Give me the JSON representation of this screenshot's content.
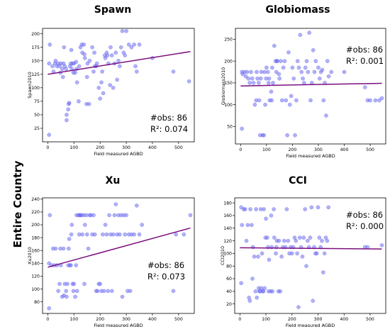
{
  "side_label": "Entire Country",
  "colors": {
    "points": "#6f6ff2",
    "fit_line": "#7a0f7e"
  },
  "chart_data": [
    {
      "type": "scatter",
      "title": "Spawn",
      "xlabel": "Field measured AGBD",
      "ylabel": "Spawn2010",
      "xlim": [
        -20,
        560
      ],
      "ylim": [
        0,
        210
      ],
      "xticks": [
        0,
        100,
        200,
        300,
        400,
        500
      ],
      "yticks": [
        25,
        50,
        75,
        100,
        125,
        150,
        175,
        200
      ],
      "obs_label": "#obs: 86",
      "r2_label": "R²: 0.074",
      "fit": {
        "x": [
          0,
          545
        ],
        "y": [
          125,
          167
        ]
      },
      "points": [
        [
          5,
          13
        ],
        [
          5,
          145
        ],
        [
          8,
          180
        ],
        [
          18,
          140
        ],
        [
          22,
          130
        ],
        [
          28,
          145
        ],
        [
          30,
          150
        ],
        [
          35,
          140
        ],
        [
          40,
          145
        ],
        [
          45,
          140
        ],
        [
          48,
          128
        ],
        [
          50,
          145
        ],
        [
          55,
          135
        ],
        [
          58,
          120
        ],
        [
          60,
          145
        ],
        [
          62,
          175
        ],
        [
          65,
          140
        ],
        [
          70,
          135
        ],
        [
          72,
          50
        ],
        [
          72,
          40
        ],
        [
          78,
          60
        ],
        [
          80,
          70
        ],
        [
          82,
          72
        ],
        [
          85,
          140
        ],
        [
          88,
          145
        ],
        [
          90,
          170
        ],
        [
          92,
          135
        ],
        [
          95,
          145
        ],
        [
          98,
          128
        ],
        [
          100,
          145
        ],
        [
          105,
          128
        ],
        [
          108,
          148
        ],
        [
          110,
          135
        ],
        [
          112,
          110
        ],
        [
          118,
          75
        ],
        [
          120,
          140
        ],
        [
          125,
          175
        ],
        [
          130,
          180
        ],
        [
          132,
          165
        ],
        [
          138,
          180
        ],
        [
          140,
          162
        ],
        [
          142,
          155
        ],
        [
          148,
          70
        ],
        [
          150,
          120
        ],
        [
          152,
          145
        ],
        [
          158,
          70
        ],
        [
          160,
          150
        ],
        [
          170,
          175
        ],
        [
          175,
          130
        ],
        [
          178,
          165
        ],
        [
          180,
          140
        ],
        [
          185,
          140
        ],
        [
          188,
          145
        ],
        [
          195,
          100
        ],
        [
          200,
          80
        ],
        [
          205,
          110
        ],
        [
          208,
          130
        ],
        [
          212,
          90
        ],
        [
          218,
          160
        ],
        [
          220,
          155
        ],
        [
          225,
          165
        ],
        [
          228,
          160
        ],
        [
          232,
          145
        ],
        [
          238,
          105
        ],
        [
          240,
          175
        ],
        [
          245,
          160
        ],
        [
          250,
          100
        ],
        [
          255,
          145
        ],
        [
          260,
          165
        ],
        [
          265,
          115
        ],
        [
          270,
          150
        ],
        [
          275,
          140
        ],
        [
          280,
          175
        ],
        [
          285,
          205
        ],
        [
          290,
          165
        ],
        [
          295,
          160
        ],
        [
          300,
          205
        ],
        [
          310,
          180
        ],
        [
          320,
          175
        ],
        [
          330,
          180
        ],
        [
          335,
          140
        ],
        [
          340,
          130
        ],
        [
          350,
          180
        ],
        [
          400,
          155
        ],
        [
          480,
          130
        ],
        [
          540,
          112
        ]
      ]
    },
    {
      "type": "scatter",
      "title": "Globiomass",
      "xlabel": "Field measured AGBD",
      "ylabel": "Globiomass2010",
      "xlim": [
        -20,
        560
      ],
      "ylim": [
        10,
        275
      ],
      "xticks": [
        0,
        100,
        200,
        300,
        400,
        500
      ],
      "yticks": [
        50,
        100,
        150,
        200,
        250
      ],
      "obs_label": "#obs: 86",
      "r2_label": "R²: 0.001",
      "fit": {
        "x": [
          0,
          545
        ],
        "y": [
          143,
          149
        ]
      },
      "points": [
        [
          5,
          175
        ],
        [
          5,
          45
        ],
        [
          8,
          170
        ],
        [
          15,
          175
        ],
        [
          20,
          165
        ],
        [
          25,
          175
        ],
        [
          30,
          160
        ],
        [
          35,
          150
        ],
        [
          40,
          175
        ],
        [
          45,
          160
        ],
        [
          50,
          150
        ],
        [
          55,
          100
        ],
        [
          60,
          110
        ],
        [
          62,
          175
        ],
        [
          65,
          160
        ],
        [
          70,
          150
        ],
        [
          72,
          110
        ],
        [
          75,
          30
        ],
        [
          78,
          160
        ],
        [
          80,
          175
        ],
        [
          85,
          30
        ],
        [
          90,
          30
        ],
        [
          92,
          175
        ],
        [
          95,
          100
        ],
        [
          98,
          160
        ],
        [
          100,
          185
        ],
        [
          105,
          175
        ],
        [
          108,
          150
        ],
        [
          110,
          160
        ],
        [
          112,
          110
        ],
        [
          118,
          130
        ],
        [
          120,
          110
        ],
        [
          122,
          185
        ],
        [
          125,
          150
        ],
        [
          130,
          235
        ],
        [
          135,
          200
        ],
        [
          138,
          175
        ],
        [
          140,
          200
        ],
        [
          142,
          200
        ],
        [
          148,
          170
        ],
        [
          150,
          160
        ],
        [
          155,
          200
        ],
        [
          160,
          110
        ],
        [
          165,
          185
        ],
        [
          170,
          200
        ],
        [
          175,
          110
        ],
        [
          180,
          30
        ],
        [
          185,
          220
        ],
        [
          190,
          100
        ],
        [
          195,
          120
        ],
        [
          200,
          185
        ],
        [
          205,
          160
        ],
        [
          210,
          30
        ],
        [
          215,
          110
        ],
        [
          220,
          200
        ],
        [
          225,
          185
        ],
        [
          230,
          260
        ],
        [
          235,
          175
        ],
        [
          240,
          160
        ],
        [
          245,
          150
        ],
        [
          250,
          185
        ],
        [
          255,
          200
        ],
        [
          260,
          175
        ],
        [
          265,
          265
        ],
        [
          270,
          110
        ],
        [
          275,
          150
        ],
        [
          280,
          225
        ],
        [
          285,
          175
        ],
        [
          290,
          200
        ],
        [
          300,
          185
        ],
        [
          305,
          160
        ],
        [
          310,
          175
        ],
        [
          315,
          180
        ],
        [
          320,
          110
        ],
        [
          325,
          150
        ],
        [
          330,
          75
        ],
        [
          335,
          200
        ],
        [
          340,
          165
        ],
        [
          350,
          175
        ],
        [
          400,
          175
        ],
        [
          480,
          140
        ],
        [
          490,
          110
        ],
        [
          500,
          110
        ],
        [
          520,
          110
        ],
        [
          535,
          110
        ],
        [
          545,
          115
        ]
      ]
    },
    {
      "type": "scatter",
      "title": "Xu",
      "xlabel": "Field measured AGBD",
      "ylabel": "Xu2010",
      "xlim": [
        -20,
        560
      ],
      "ylim": [
        62,
        242
      ],
      "xticks": [
        0,
        100,
        200,
        300,
        400,
        500
      ],
      "yticks": [
        80,
        100,
        120,
        140,
        160,
        180,
        200,
        220,
        240
      ],
      "obs_label": "#obs: 86",
      "r2_label": "R²: 0.073",
      "fit": {
        "x": [
          0,
          545
        ],
        "y": [
          134,
          195
        ]
      },
      "points": [
        [
          5,
          70
        ],
        [
          5,
          140
        ],
        [
          8,
          215
        ],
        [
          15,
          137
        ],
        [
          20,
          163
        ],
        [
          25,
          137
        ],
        [
          30,
          163
        ],
        [
          35,
          137
        ],
        [
          40,
          97
        ],
        [
          45,
          108
        ],
        [
          48,
          163
        ],
        [
          50,
          137
        ],
        [
          55,
          88
        ],
        [
          60,
          163
        ],
        [
          62,
          90
        ],
        [
          65,
          108
        ],
        [
          70,
          97
        ],
        [
          72,
          88
        ],
        [
          75,
          108
        ],
        [
          78,
          137
        ],
        [
          80,
          163
        ],
        [
          82,
          178
        ],
        [
          85,
          137
        ],
        [
          88,
          137
        ],
        [
          90,
          185
        ],
        [
          92,
          200
        ],
        [
          95,
          108
        ],
        [
          98,
          97
        ],
        [
          100,
          108
        ],
        [
          105,
          88
        ],
        [
          108,
          137
        ],
        [
          110,
          215
        ],
        [
          112,
          97
        ],
        [
          118,
          215
        ],
        [
          120,
          185
        ],
        [
          122,
          215
        ],
        [
          125,
          215
        ],
        [
          130,
          215
        ],
        [
          132,
          185
        ],
        [
          138,
          215
        ],
        [
          140,
          108
        ],
        [
          142,
          200
        ],
        [
          148,
          215
        ],
        [
          150,
          185
        ],
        [
          155,
          163
        ],
        [
          160,
          215
        ],
        [
          165,
          215
        ],
        [
          170,
          185
        ],
        [
          175,
          215
        ],
        [
          180,
          185
        ],
        [
          185,
          97
        ],
        [
          190,
          97
        ],
        [
          195,
          108
        ],
        [
          200,
          108
        ],
        [
          205,
          97
        ],
        [
          210,
          185
        ],
        [
          215,
          97
        ],
        [
          220,
          200
        ],
        [
          225,
          185
        ],
        [
          230,
          97
        ],
        [
          235,
          215
        ],
        [
          240,
          185
        ],
        [
          245,
          97
        ],
        [
          250,
          185
        ],
        [
          255,
          215
        ],
        [
          260,
          232
        ],
        [
          265,
          185
        ],
        [
          270,
          215
        ],
        [
          275,
          185
        ],
        [
          280,
          215
        ],
        [
          285,
          88
        ],
        [
          290,
          215
        ],
        [
          295,
          185
        ],
        [
          300,
          215
        ],
        [
          305,
          97
        ],
        [
          310,
          185
        ],
        [
          315,
          97
        ],
        [
          320,
          185
        ],
        [
          330,
          185
        ],
        [
          340,
          230
        ],
        [
          350,
          185
        ],
        [
          360,
          200
        ],
        [
          480,
          97
        ],
        [
          490,
          185
        ],
        [
          520,
          185
        ],
        [
          545,
          215
        ]
      ]
    },
    {
      "type": "scatter",
      "title": "CCI",
      "xlabel": "Field measured AGBD",
      "ylabel": "CCI2010",
      "xlim": [
        -20,
        560
      ],
      "ylim": [
        5,
        188
      ],
      "xticks": [
        0,
        100,
        200,
        300,
        400,
        500
      ],
      "yticks": [
        20,
        40,
        60,
        80,
        100,
        120,
        140,
        160,
        180
      ],
      "obs_label": "#obs: 86",
      "r2_label": "R²: 0.000",
      "fit": {
        "x": [
          0,
          545
        ],
        "y": [
          109,
          107
        ]
      },
      "points": [
        [
          5,
          53
        ],
        [
          5,
          173
        ],
        [
          8,
          145
        ],
        [
          15,
          170
        ],
        [
          20,
          170
        ],
        [
          25,
          120
        ],
        [
          30,
          145
        ],
        [
          35,
          30
        ],
        [
          38,
          25
        ],
        [
          40,
          170
        ],
        [
          45,
          145
        ],
        [
          48,
          60
        ],
        [
          50,
          110
        ],
        [
          55,
          95
        ],
        [
          60,
          40
        ],
        [
          62,
          170
        ],
        [
          65,
          30
        ],
        [
          70,
          95
        ],
        [
          72,
          45
        ],
        [
          75,
          40
        ],
        [
          78,
          40
        ],
        [
          80,
          170
        ],
        [
          82,
          45
        ],
        [
          85,
          100
        ],
        [
          88,
          40
        ],
        [
          90,
          40
        ],
        [
          92,
          170
        ],
        [
          95,
          45
        ],
        [
          98,
          125
        ],
        [
          100,
          155
        ],
        [
          105,
          125
        ],
        [
          108,
          110
        ],
        [
          110,
          40
        ],
        [
          112,
          90
        ],
        [
          118,
          40
        ],
        [
          120,
          160
        ],
        [
          122,
          110
        ],
        [
          125,
          40
        ],
        [
          130,
          170
        ],
        [
          132,
          125
        ],
        [
          138,
          100
        ],
        [
          140,
          110
        ],
        [
          142,
          120
        ],
        [
          148,
          40
        ],
        [
          150,
          120
        ],
        [
          155,
          40
        ],
        [
          160,
          95
        ],
        [
          165,
          110
        ],
        [
          170,
          120
        ],
        [
          175,
          110
        ],
        [
          180,
          170
        ],
        [
          185,
          120
        ],
        [
          190,
          100
        ],
        [
          195,
          110
        ],
        [
          200,
          100
        ],
        [
          205,
          110
        ],
        [
          210,
          125
        ],
        [
          215,
          120
        ],
        [
          220,
          100
        ],
        [
          225,
          15
        ],
        [
          230,
          125
        ],
        [
          235,
          110
        ],
        [
          240,
          95
        ],
        [
          245,
          125
        ],
        [
          250,
          170
        ],
        [
          255,
          80
        ],
        [
          260,
          120
        ],
        [
          265,
          110
        ],
        [
          270,
          125
        ],
        [
          275,
          173
        ],
        [
          280,
          25
        ],
        [
          285,
          110
        ],
        [
          290,
          100
        ],
        [
          295,
          100
        ],
        [
          300,
          173
        ],
        [
          305,
          125
        ],
        [
          310,
          110
        ],
        [
          315,
          120
        ],
        [
          320,
          70
        ],
        [
          325,
          100
        ],
        [
          330,
          125
        ],
        [
          335,
          120
        ],
        [
          340,
          173
        ],
        [
          480,
          110
        ],
        [
          490,
          110
        ],
        [
          545,
          113
        ]
      ]
    }
  ]
}
